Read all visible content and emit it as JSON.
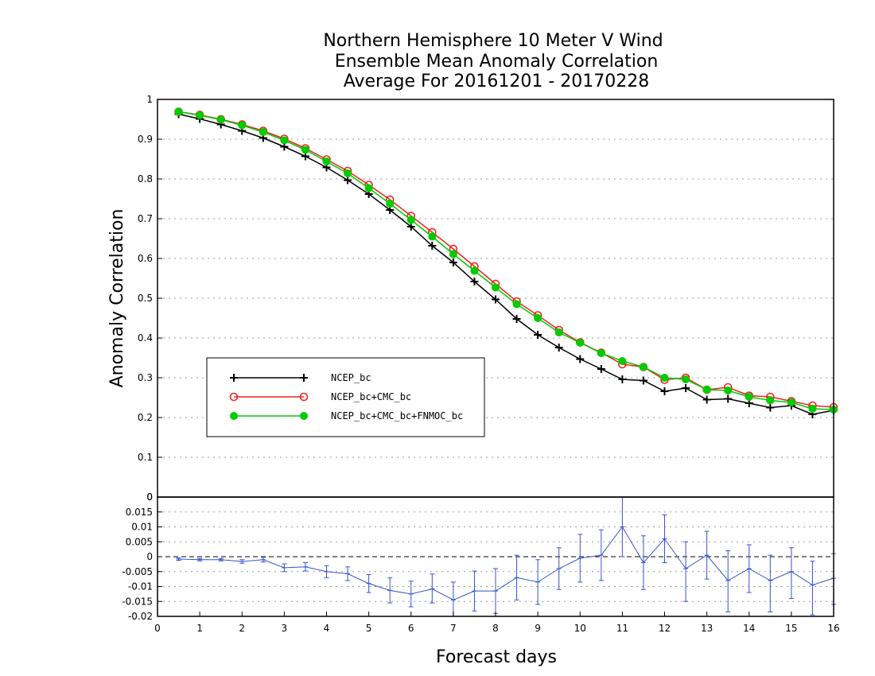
{
  "colors": {
    "ncep": "#000000",
    "cmc": "#ee2222",
    "fnmoc": "#00cc00",
    "diff": "#3355cc",
    "grid": "#999999"
  },
  "chart_data": [
    {
      "type": "line",
      "title": [
        "Northern Hemisphere 10 Meter V Wind",
        "Ensemble Mean Anomaly Correlation",
        "Average For 20161201 - 20170228"
      ],
      "xlabel": "Forecast days",
      "ylabel": "Anomaly Correlation",
      "xlim": [
        0,
        16
      ],
      "ylim": [
        0,
        1
      ],
      "yticks": [
        "0",
        "0.1",
        "0.2",
        "0.3",
        "0.4",
        "0.5",
        "0.6",
        "0.7",
        "0.8",
        "0.9",
        "1"
      ],
      "grid": true,
      "legend_position": "lower-left",
      "x": [
        0.5,
        1,
        1.5,
        2,
        2.5,
        3,
        3.5,
        4,
        4.5,
        5,
        5.5,
        6,
        6.5,
        7,
        7.5,
        8,
        8.5,
        9,
        9.5,
        10,
        10.5,
        11,
        11.5,
        12,
        12.5,
        13,
        13.5,
        14,
        14.5,
        15,
        15.5,
        16
      ],
      "series": [
        {
          "name": "NCEP_bc",
          "marker": "plus",
          "values": [
            0.963,
            0.951,
            0.937,
            0.921,
            0.903,
            0.881,
            0.857,
            0.829,
            0.797,
            0.762,
            0.722,
            0.68,
            0.632,
            0.59,
            0.542,
            0.497,
            0.448,
            0.408,
            0.376,
            0.347,
            0.322,
            0.296,
            0.293,
            0.266,
            0.274,
            0.245,
            0.247,
            0.236,
            0.225,
            0.23,
            0.208,
            0.218
          ]
        },
        {
          "name": "NCEP_bc+CMC_bc",
          "marker": "open-circle",
          "values": [
            0.969,
            0.961,
            0.95,
            0.937,
            0.921,
            0.901,
            0.877,
            0.849,
            0.82,
            0.785,
            0.748,
            0.707,
            0.666,
            0.624,
            0.58,
            0.536,
            0.492,
            0.457,
            0.42,
            0.389,
            0.363,
            0.334,
            0.327,
            0.295,
            0.3,
            0.27,
            0.276,
            0.255,
            0.252,
            0.241,
            0.23,
            0.226
          ]
        },
        {
          "name": "NCEP_bc+CMC_bc+FNMOC_bc",
          "marker": "filled-circle",
          "values": [
            0.969,
            0.96,
            0.949,
            0.935,
            0.918,
            0.897,
            0.873,
            0.844,
            0.814,
            0.777,
            0.738,
            0.697,
            0.655,
            0.611,
            0.569,
            0.527,
            0.485,
            0.45,
            0.414,
            0.388,
            0.362,
            0.342,
            0.327,
            0.3,
            0.296,
            0.27,
            0.268,
            0.252,
            0.243,
            0.238,
            0.222,
            0.22
          ]
        }
      ]
    },
    {
      "type": "line",
      "xlabel": "Forecast days",
      "xlim": [
        0,
        16
      ],
      "xticks": [
        "0",
        "1",
        "2",
        "3",
        "4",
        "5",
        "6",
        "7",
        "8",
        "9",
        "10",
        "11",
        "12",
        "13",
        "14",
        "15",
        "16"
      ],
      "ylim": [
        -0.02,
        0.02
      ],
      "yticks": [
        "-0.02",
        "-0.015",
        "-0.01",
        "-0.005",
        "0",
        "0.005",
        "0.01",
        "0.015"
      ],
      "top_label": "0",
      "grid": true,
      "zero_line": "dashed",
      "x": [
        0.5,
        1,
        1.5,
        2,
        2.5,
        3,
        3.5,
        4,
        4.5,
        5,
        5.5,
        6,
        6.5,
        7,
        7.5,
        8,
        8.5,
        9,
        9.5,
        10,
        10.5,
        11,
        11.5,
        12,
        12.5,
        13,
        13.5,
        14,
        14.5,
        15,
        15.5,
        16
      ],
      "series": [
        {
          "values": [
            -0.0008,
            -0.001,
            -0.001,
            -0.0016,
            -0.001,
            -0.0037,
            -0.0034,
            -0.005,
            -0.0057,
            -0.009,
            -0.0113,
            -0.0125,
            -0.0108,
            -0.0145,
            -0.0115,
            -0.0115,
            -0.007,
            -0.0085,
            -0.004,
            -0.0005,
            0.0005,
            0.01,
            -0.002,
            0.006,
            -0.004,
            0.0005,
            -0.008,
            -0.004,
            -0.008,
            -0.005,
            -0.0095,
            -0.0072
          ],
          "error_low": [
            -0.0012,
            -0.0014,
            -0.0014,
            -0.0022,
            -0.0018,
            -0.005,
            -0.0048,
            -0.007,
            -0.008,
            -0.012,
            -0.0155,
            -0.0168,
            -0.0155,
            -0.0205,
            -0.0182,
            -0.019,
            -0.0145,
            -0.016,
            -0.011,
            -0.0085,
            -0.008,
            0.0,
            -0.011,
            -0.002,
            -0.015,
            -0.0075,
            -0.0185,
            -0.012,
            -0.0185,
            -0.014,
            -0.0195,
            -0.016
          ],
          "error_high": [
            -0.0004,
            -0.0006,
            -0.0006,
            -0.001,
            -0.0002,
            -0.0024,
            -0.002,
            -0.003,
            -0.0034,
            -0.006,
            -0.0071,
            -0.0082,
            -0.0058,
            -0.0085,
            -0.0048,
            -0.004,
            0.0005,
            -0.001,
            0.003,
            0.0075,
            0.009,
            0.02,
            0.007,
            0.014,
            0.005,
            0.0085,
            0.002,
            0.004,
            0.0005,
            0.003,
            -0.0015,
            0.001
          ]
        }
      ]
    }
  ]
}
